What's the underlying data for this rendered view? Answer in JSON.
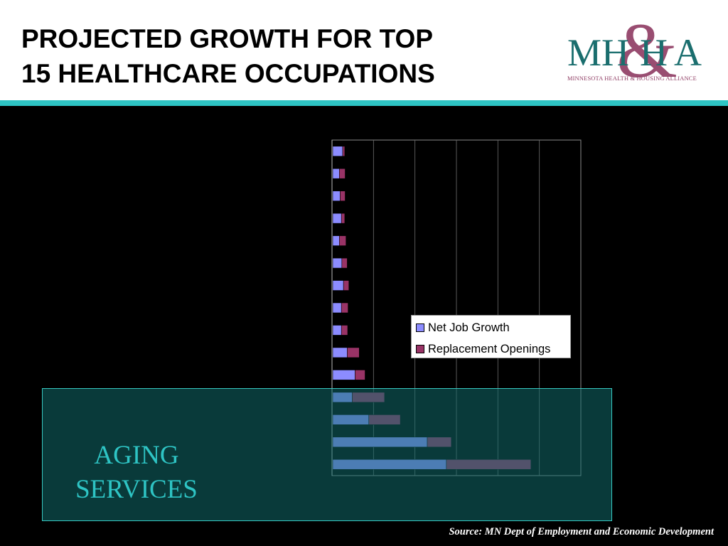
{
  "slide": {
    "title_line1": "PROJECTED GROWTH FOR TOP",
    "title_line2": "15 HEALTHCARE OCCUPATIONS",
    "accent_color": "#2ec4c4",
    "highlight_label_line1": "AGING",
    "highlight_label_line2": "SERVICES",
    "source": "Source: MN Dept of Employment and Economic Development"
  },
  "logo": {
    "letters_left": "MH",
    "letters_middle": "H",
    "letters_right": "A",
    "ampersand": "&",
    "subtitle": "MINNESOTA HEALTH & HOUSING ALLIANCE",
    "teal": "#1a6e6e",
    "plum": "#8e3a62"
  },
  "chart_data": {
    "type": "bar",
    "orientation": "horizontal",
    "stacked": true,
    "categories": [
      "",
      "",
      "",
      "",
      "",
      "",
      "",
      "",
      "",
      "",
      "",
      "",
      "",
      "",
      ""
    ],
    "series": [
      {
        "name": "Net Job Growth",
        "color": "#8c8cff",
        "values": [
          0.24,
          0.16,
          0.18,
          0.21,
          0.16,
          0.22,
          0.26,
          0.21,
          0.21,
          0.35,
          0.54,
          0.47,
          0.87,
          2.28,
          2.74
        ]
      },
      {
        "name": "Replacement Openings",
        "color": "#993366",
        "values": [
          0.05,
          0.14,
          0.12,
          0.08,
          0.16,
          0.13,
          0.13,
          0.16,
          0.15,
          0.29,
          0.24,
          0.78,
          0.76,
          0.58,
          2.04
        ]
      }
    ],
    "xlim": [
      0,
      6
    ],
    "grid": true,
    "legend_position": "center-right"
  }
}
